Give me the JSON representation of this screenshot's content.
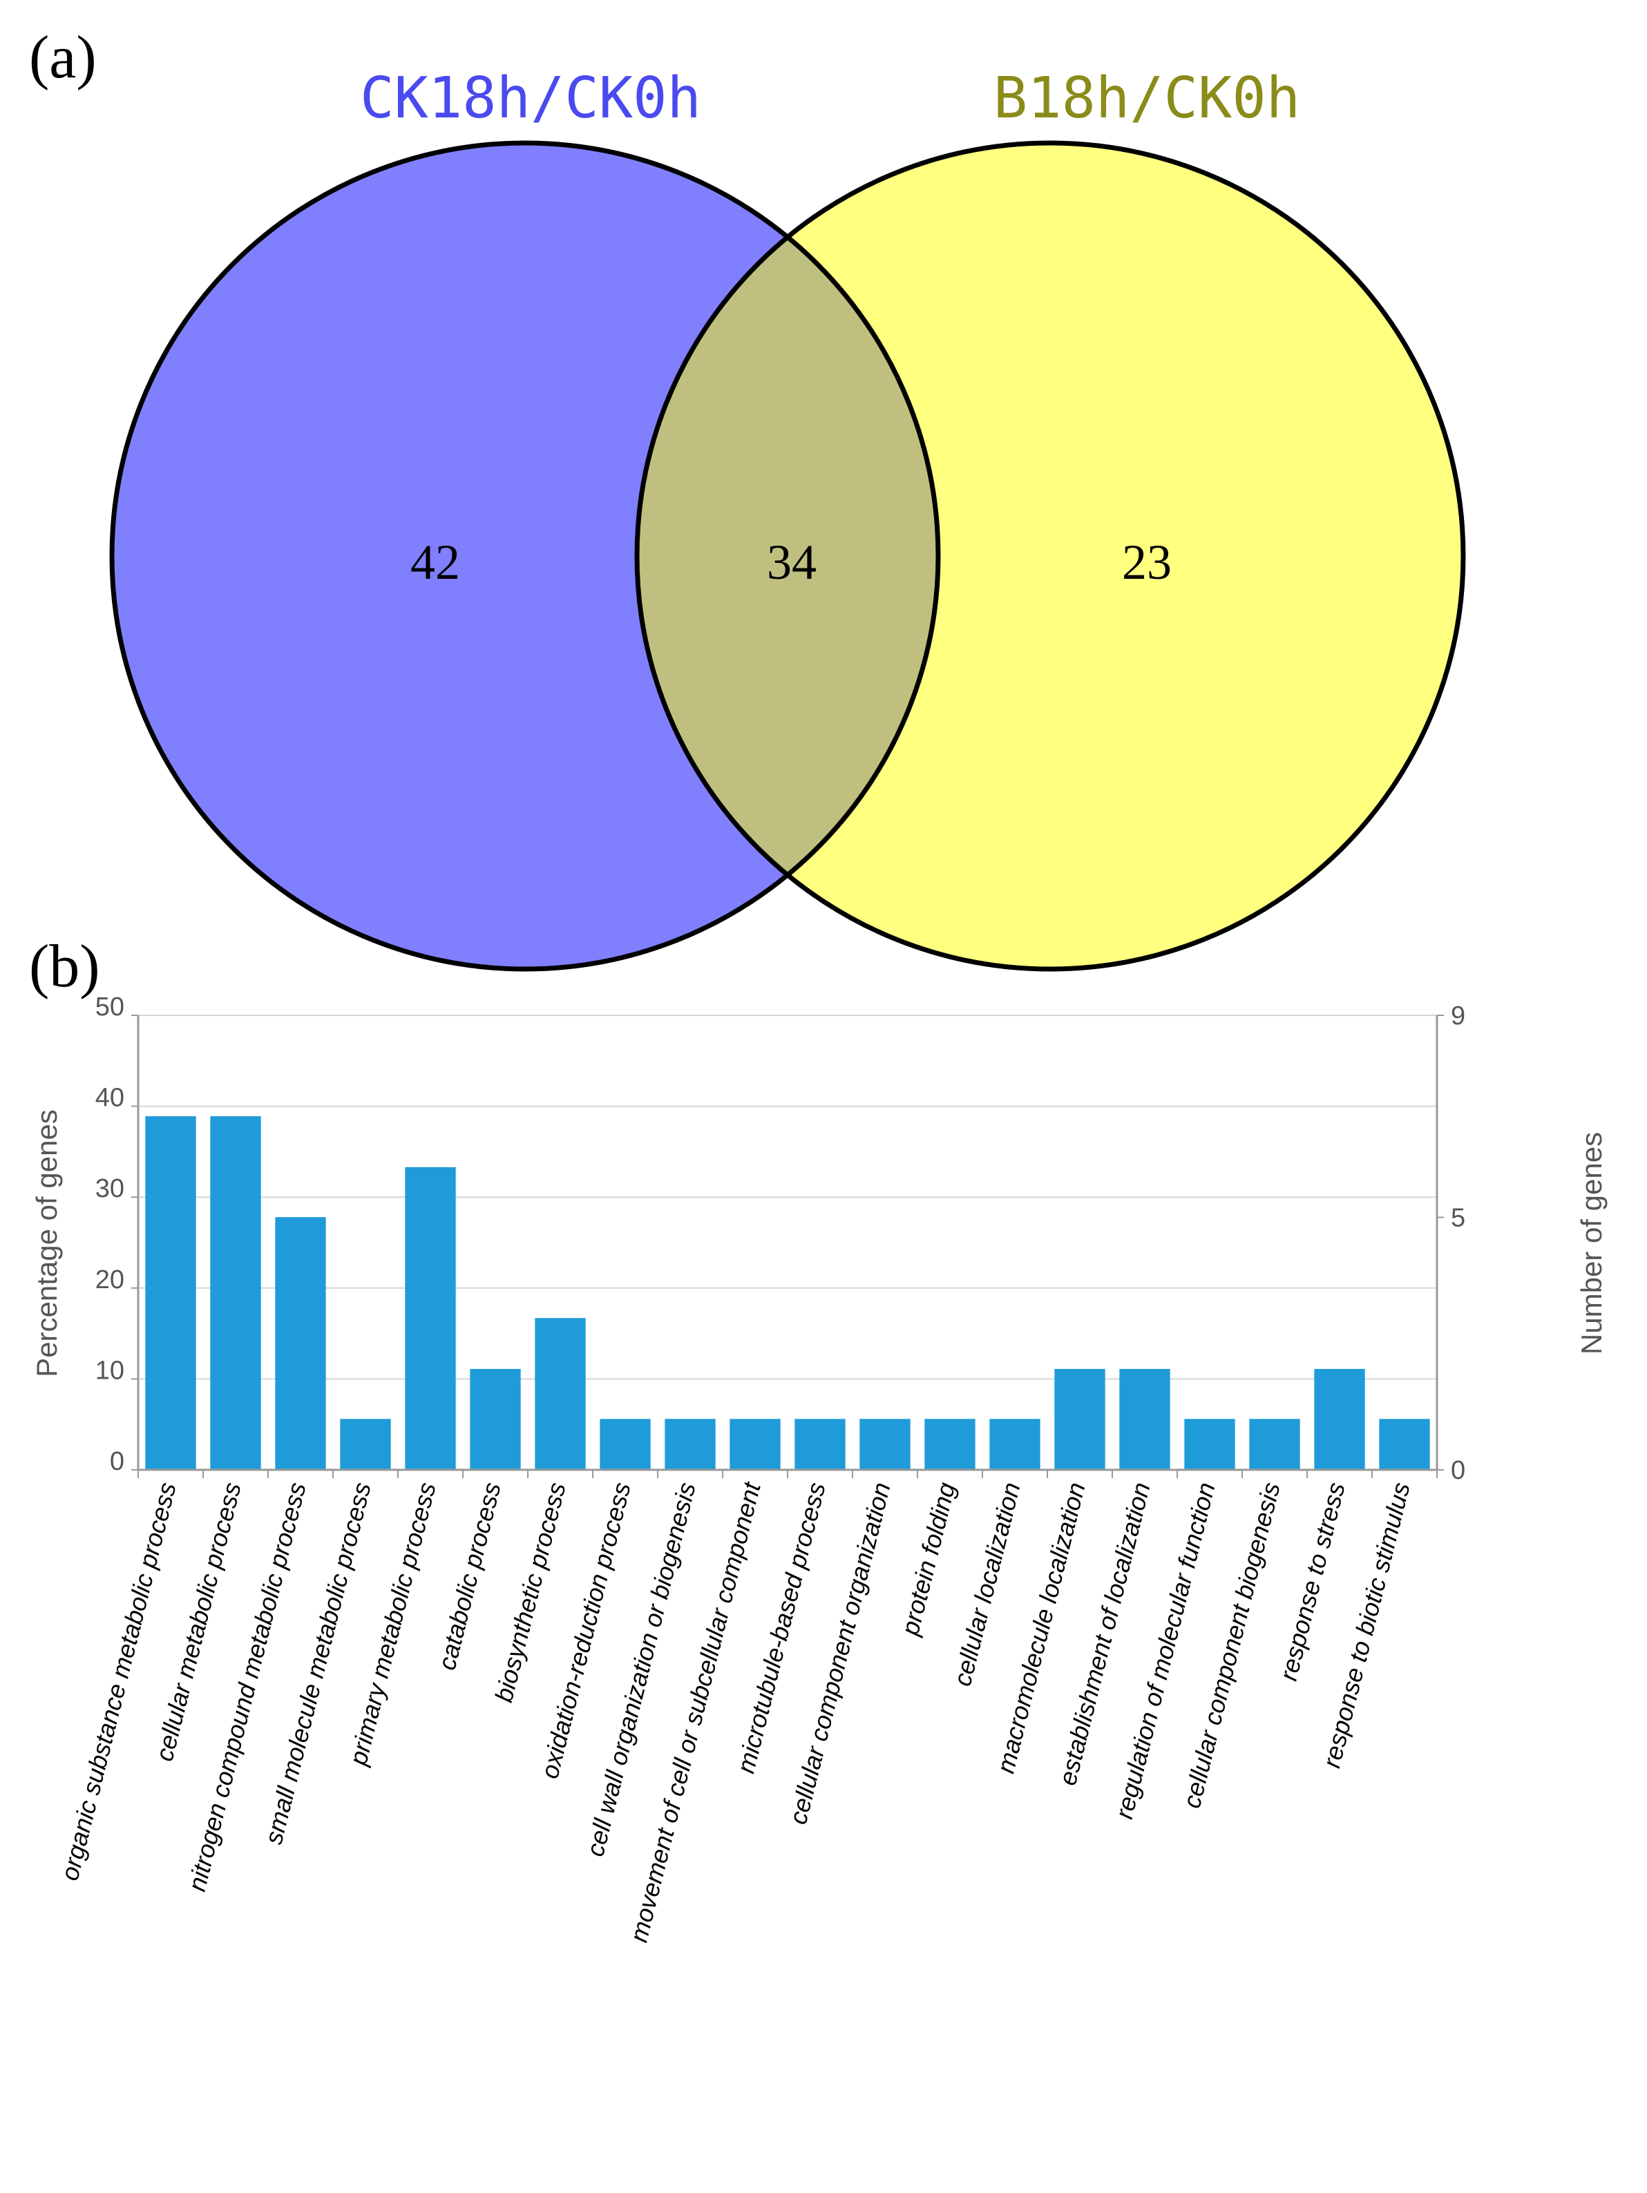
{
  "panel_a": {
    "label": "(a)",
    "chart_data": {
      "type": "venn",
      "sets": [
        {
          "name": "CK18h/CK0h",
          "unique_count": "42",
          "color": "#8080FF",
          "title_color": "#4A4AEF"
        },
        {
          "name": "B18h/CK0h",
          "unique_count": "23",
          "color": "#FFFF80",
          "title_color": "#8B8B1A"
        }
      ],
      "intersection": {
        "count": "34",
        "color": "#BFBF80"
      }
    }
  },
  "panel_b": {
    "label": "(b)",
    "chart_data": {
      "type": "bar",
      "bar_color": "#1F9BD9",
      "ylabel": "Percentage of genes",
      "y2label": "Number of genes",
      "ylim": [
        0,
        50
      ],
      "yticks": [
        "0",
        "10",
        "20",
        "30",
        "40",
        "50"
      ],
      "y2lim": [
        0,
        9
      ],
      "y2ticks": [
        {
          "value": 0,
          "label": "0"
        },
        {
          "value": 5,
          "label": "5"
        },
        {
          "value": 9,
          "label": "9"
        }
      ],
      "categories": [
        "organic substance metabolic process",
        "cellular metabolic process",
        "nitrogen compound metabolic process",
        "small molecule metabolic process",
        "primary metabolic process",
        "catabolic process",
        "biosynthetic process",
        "oxidation-reduction process",
        "cell wall organization or biogenesis",
        "movement of cell or subcellular component",
        "microtubule-based process",
        "cellular component organization",
        "protein folding",
        "cellular localization",
        "macromolecule localization",
        "establishment of localization",
        "regulation of molecular function",
        "cellular component biogenesis",
        "response to stress",
        "response to biotic stimulus"
      ],
      "values": [
        38.9,
        38.9,
        27.8,
        5.6,
        33.3,
        11.1,
        16.7,
        5.6,
        5.6,
        5.6,
        5.6,
        5.6,
        5.6,
        5.6,
        11.1,
        11.1,
        5.6,
        5.6,
        11.1,
        5.6
      ]
    }
  }
}
